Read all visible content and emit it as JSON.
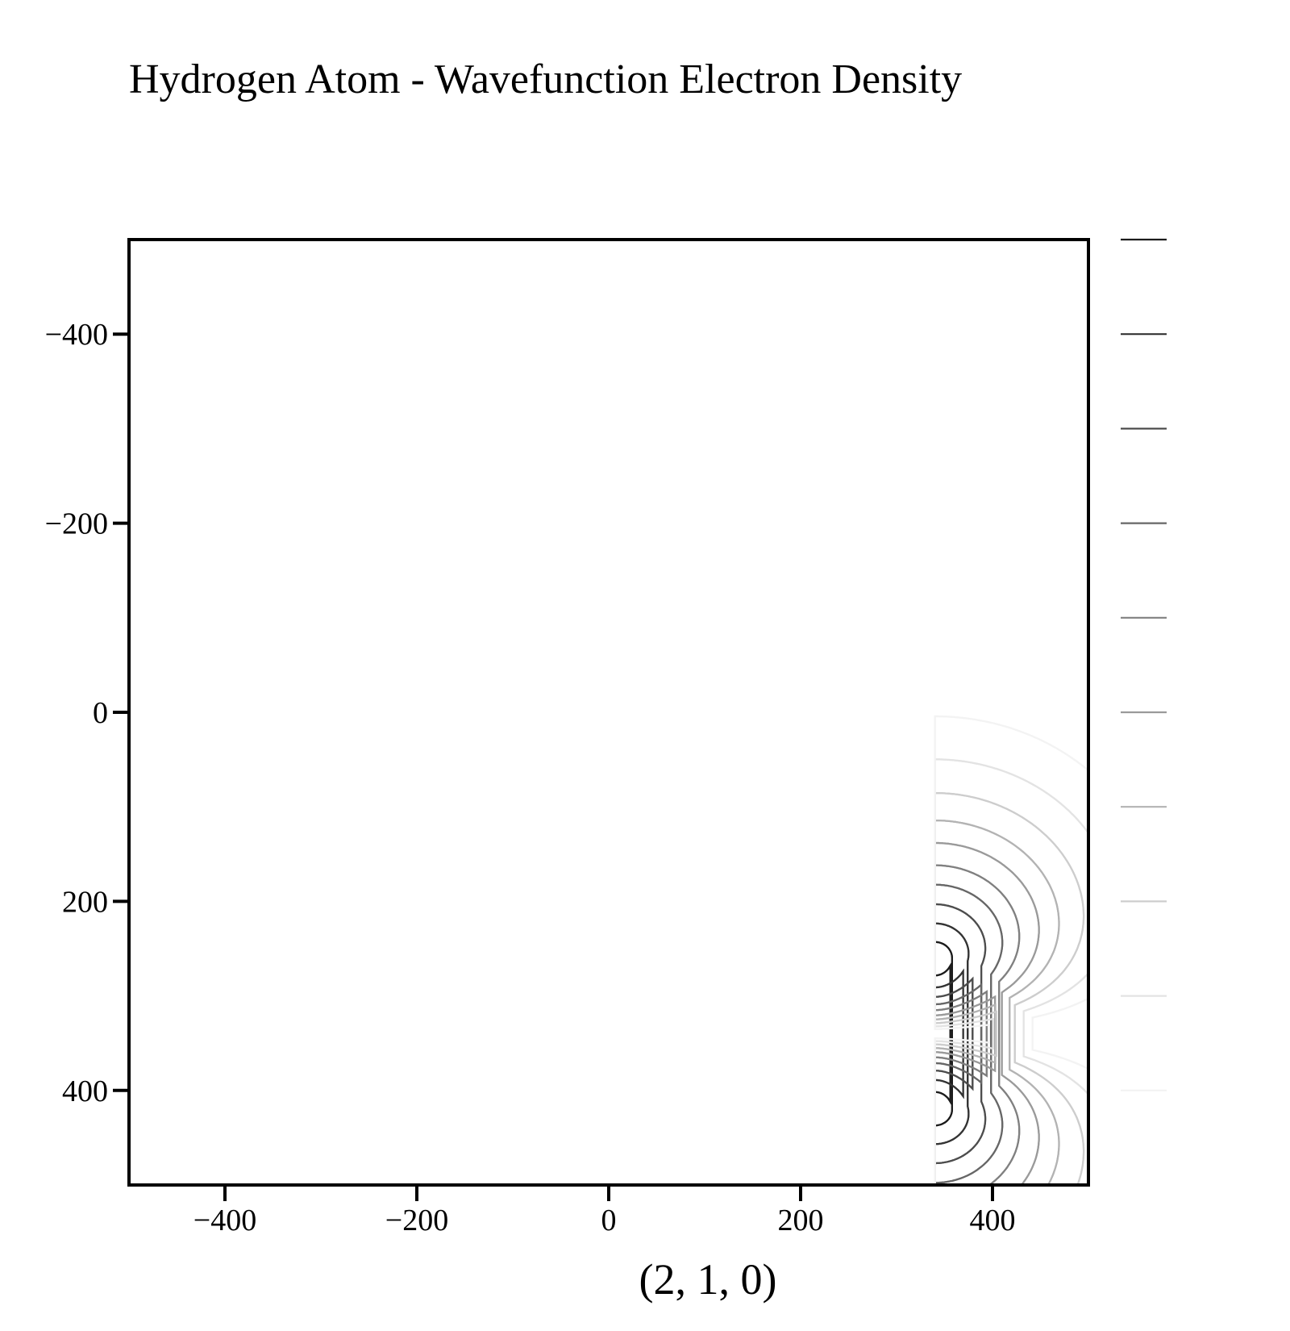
{
  "chart_data": {
    "type": "contour",
    "title": "Hydrogen Atom - Wavefunction Electron Density",
    "xlabel": "(2, 1, 0)",
    "ylabel": "",
    "xlim": [
      -500,
      500
    ],
    "ylim": [
      500,
      -500
    ],
    "y_inverted": true,
    "x_ticks": [
      -400,
      -200,
      0,
      200,
      400
    ],
    "y_ticks": [
      -400,
      -200,
      0,
      200,
      400
    ],
    "grid": false,
    "orbital": {
      "n": 2,
      "l": 1,
      "m": 0
    },
    "nucleus": {
      "x": 340,
      "y": 340
    },
    "lobes": [
      {
        "name": "upper-lobe",
        "peak": {
          "x": 340,
          "y": 262
        }
      },
      {
        "name": "lower-lobe",
        "peak": {
          "x": 340,
          "y": 418
        }
      }
    ],
    "contour_levels": [
      {
        "level": 9,
        "color": "#1c1c1c"
      },
      {
        "level": 8,
        "color": "#333333"
      },
      {
        "level": 7,
        "color": "#4d4d4d"
      },
      {
        "level": 6,
        "color": "#676767"
      },
      {
        "level": 5,
        "color": "#808080"
      },
      {
        "level": 4,
        "color": "#9a9a9a"
      },
      {
        "level": 3,
        "color": "#b3b3b3"
      },
      {
        "level": 2,
        "color": "#cdcdcd"
      },
      {
        "level": 1,
        "color": "#e3e3e3"
      },
      {
        "level": 0,
        "color": "#f3f3f3"
      }
    ],
    "legend_placement": "right"
  }
}
